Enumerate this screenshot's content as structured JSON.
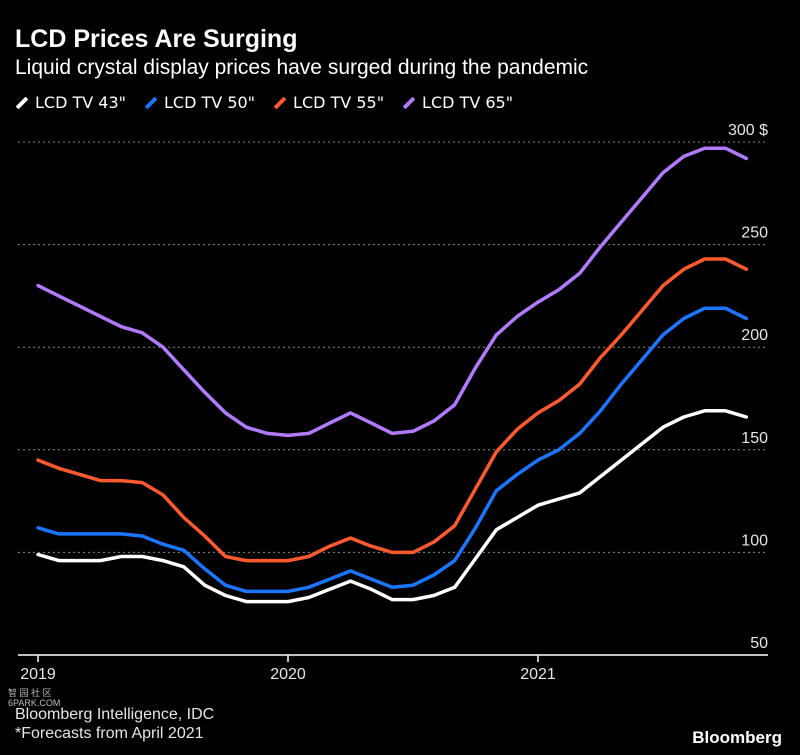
{
  "header": {
    "title": "LCD Prices Are Surging",
    "subtitle": "Liquid crystal display prices have surged during the pandemic"
  },
  "footer": {
    "source": "Bloomberg Intelligence, IDC",
    "note": "*Forecasts from April 2021",
    "brand": "Bloomberg",
    "watermark_line1": "智 园 社 区",
    "watermark_line2": "6PARK.COM"
  },
  "chart_data": {
    "type": "line",
    "title": "LCD Prices Are Surging",
    "subtitle": "Liquid crystal display prices have surged during the pandemic",
    "xlabel": "",
    "ylabel": "",
    "x": [
      2019.0,
      2019.083,
      2019.167,
      2019.25,
      2019.333,
      2019.417,
      2019.5,
      2019.583,
      2019.667,
      2019.75,
      2019.833,
      2019.917,
      2020.0,
      2020.083,
      2020.167,
      2020.25,
      2020.333,
      2020.417,
      2020.5,
      2020.583,
      2020.667,
      2020.75,
      2020.833,
      2020.917,
      2021.0,
      2021.083,
      2021.167,
      2021.25,
      2021.333,
      2021.417,
      2021.5,
      2021.583,
      2021.667,
      2021.75,
      2021.833
    ],
    "x_ticks": [
      {
        "value": 2019,
        "label": "2019"
      },
      {
        "value": 2020,
        "label": "2020"
      },
      {
        "value": 2021,
        "label": "2021"
      }
    ],
    "xlim": [
      2018.92,
      2021.92
    ],
    "ylim": [
      50,
      300
    ],
    "y_ticks": [
      {
        "value": 50,
        "label": "50"
      },
      {
        "value": 100,
        "label": "100"
      },
      {
        "value": 150,
        "label": "150"
      },
      {
        "value": 200,
        "label": "200"
      },
      {
        "value": 250,
        "label": "250"
      },
      {
        "value": 300,
        "label": "300 $"
      }
    ],
    "grid": "horizontal dotted",
    "legend_position": "top-left",
    "series": [
      {
        "name": "LCD TV 43\"",
        "color": "#ffffff",
        "values": [
          99,
          96,
          96,
          96,
          98,
          98,
          96,
          93,
          84,
          79,
          76,
          76,
          76,
          78,
          82,
          86,
          82,
          77,
          77,
          79,
          83,
          97,
          111,
          117,
          123,
          126,
          129,
          137,
          145,
          153,
          161,
          166,
          169,
          169,
          166
        ]
      },
      {
        "name": "LCD TV 50\"",
        "color": "#1a75ff",
        "values": [
          112,
          109,
          109,
          109,
          109,
          108,
          104,
          101,
          92,
          84,
          81,
          81,
          81,
          83,
          87,
          91,
          87,
          83,
          84,
          89,
          96,
          112,
          130,
          138,
          145,
          150,
          158,
          169,
          182,
          194,
          206,
          214,
          219,
          219,
          214
        ]
      },
      {
        "name": "LCD TV 55\"",
        "color": "#ff5a2d",
        "values": [
          145,
          141,
          138,
          135,
          135,
          134,
          128,
          117,
          108,
          98,
          96,
          96,
          96,
          98,
          103,
          107,
          103,
          100,
          100,
          105,
          113,
          131,
          149,
          160,
          168,
          174,
          182,
          195,
          206,
          218,
          230,
          238,
          243,
          243,
          238
        ]
      },
      {
        "name": "LCD TV 65\"",
        "color": "#b27aff",
        "values": [
          230,
          225,
          220,
          215,
          210,
          207,
          200,
          189,
          178,
          168,
          161,
          158,
          157,
          158,
          163,
          168,
          163,
          158,
          159,
          164,
          172,
          190,
          206,
          215,
          222,
          228,
          236,
          249,
          261,
          273,
          285,
          293,
          297,
          297,
          292
        ]
      }
    ]
  }
}
